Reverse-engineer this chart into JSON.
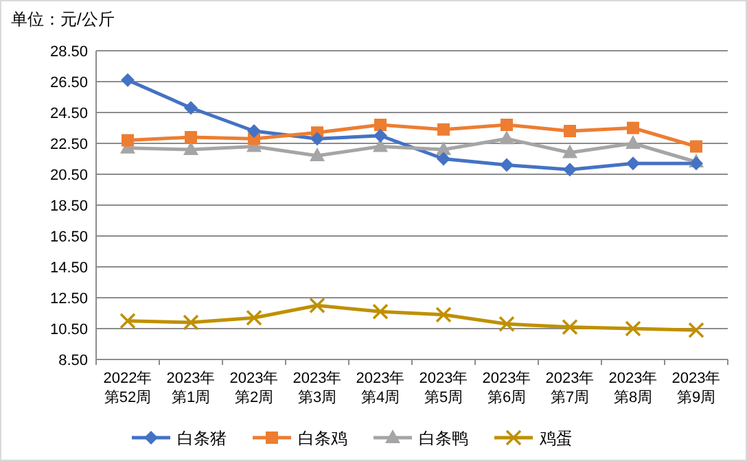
{
  "chart_data": {
    "type": "line",
    "ylabel": "单位：元/公斤",
    "categories": [
      "2022年第52周",
      "2023年第1周",
      "2023年第2周",
      "2023年第3周",
      "2023年第4周",
      "2023年第5周",
      "2023年第6周",
      "2023年第7周",
      "2023年第8周",
      "2023年第9周"
    ],
    "series": [
      {
        "name": "白条猪",
        "color": "#4472c4",
        "marker": "diamond",
        "values": [
          26.6,
          24.8,
          23.3,
          22.8,
          23.0,
          21.5,
          21.1,
          20.8,
          21.2,
          21.2
        ]
      },
      {
        "name": "白条鸡",
        "color": "#ed7d31",
        "marker": "square",
        "values": [
          22.7,
          22.9,
          22.8,
          23.2,
          23.7,
          23.4,
          23.7,
          23.3,
          23.5,
          22.3
        ]
      },
      {
        "name": "白条鸭",
        "color": "#a5a5a5",
        "marker": "triangle",
        "values": [
          22.2,
          22.1,
          22.3,
          21.7,
          22.3,
          22.1,
          22.8,
          21.9,
          22.5,
          21.3
        ]
      },
      {
        "name": "鸡蛋",
        "color": "#bf9000",
        "marker": "cross",
        "values": [
          11.0,
          10.9,
          11.2,
          12.0,
          11.6,
          11.4,
          10.8,
          10.6,
          10.5,
          10.4
        ]
      }
    ],
    "ylim": [
      8.5,
      28.5
    ],
    "yticks": [
      {
        "value": 8.5,
        "label": "8.50"
      },
      {
        "value": 10.5,
        "label": "10.50"
      },
      {
        "value": 12.5,
        "label": "12.50"
      },
      {
        "value": 14.5,
        "label": "14.50"
      },
      {
        "value": 16.5,
        "label": "16.50"
      },
      {
        "value": 18.5,
        "label": "18.50"
      },
      {
        "value": 20.5,
        "label": "20.50"
      },
      {
        "value": 22.5,
        "label": "22.50"
      },
      {
        "value": 24.5,
        "label": "24.50"
      },
      {
        "value": 26.5,
        "label": "26.50"
      },
      {
        "value": 28.5,
        "label": "28.50"
      }
    ],
    "grid": "y",
    "legend": "bottom"
  }
}
